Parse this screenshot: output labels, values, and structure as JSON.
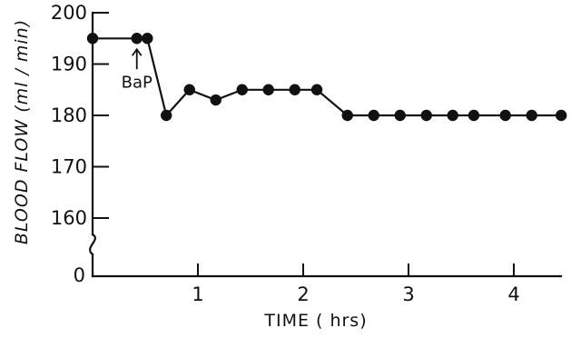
{
  "chart_data": {
    "type": "line",
    "title": "",
    "xlabel": "TIME ( hrs)",
    "ylabel": "BLOOD FLOW (ml / min)",
    "xlim": [
      0,
      4.5
    ],
    "ylim": [
      155,
      200
    ],
    "y_axis_break": true,
    "x_ticks": [
      1,
      2,
      3,
      4
    ],
    "y_ticks": [
      160,
      170,
      180,
      190,
      200
    ],
    "y_zero_label": "0",
    "grid": false,
    "legend": "none",
    "color": "#111111",
    "series": [
      {
        "x": [
          0.0,
          0.42,
          0.52,
          0.7,
          0.92,
          1.17,
          1.42,
          1.67,
          1.92,
          2.13,
          2.42,
          2.67,
          2.92,
          3.17,
          3.42,
          3.62,
          3.92,
          4.17,
          4.45
        ],
        "values": [
          195,
          195,
          195,
          180,
          185,
          183,
          185,
          185,
          185,
          185,
          180,
          180,
          180,
          180,
          180,
          180,
          180,
          180,
          180
        ]
      }
    ],
    "annotations": [
      {
        "text": "BaP",
        "x": 0.42,
        "y": 195,
        "arrow": "up"
      }
    ]
  }
}
